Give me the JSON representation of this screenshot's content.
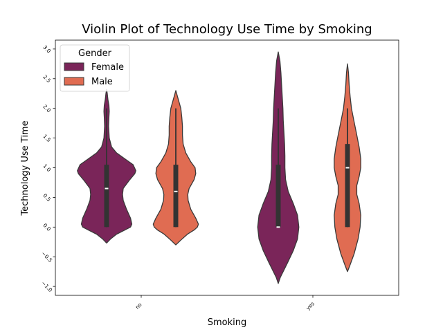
{
  "chart_data": {
    "type": "violin",
    "title": "Violin Plot of Technology Use Time by Smoking",
    "xlabel": "Smoking",
    "ylabel": "Technology Use Time",
    "categories": [
      "no",
      "yes"
    ],
    "yticks": [
      "−1.0",
      "−0.5",
      "0.0",
      "0.5",
      "1.0",
      "1.5",
      "2.0",
      "2.5",
      "3.0"
    ],
    "ylim": [
      -1.15,
      3.15
    ],
    "legend": {
      "title": "Gender",
      "position": "upper-left"
    },
    "grid": false,
    "series": [
      {
        "name": "Female",
        "color": "#7a2559",
        "stats": [
          {
            "category": "no",
            "min": 0.0,
            "q1": 0.0,
            "median": 0.65,
            "q3": 1.05,
            "max": 2.0,
            "profile": [
              [
                -0.27,
                0.0
              ],
              [
                -0.2,
                0.12
              ],
              [
                -0.12,
                0.3
              ],
              [
                -0.05,
                0.55
              ],
              [
                0.0,
                0.72
              ],
              [
                0.05,
                0.76
              ],
              [
                0.15,
                0.72
              ],
              [
                0.3,
                0.6
              ],
              [
                0.45,
                0.5
              ],
              [
                0.55,
                0.48
              ],
              [
                0.65,
                0.5
              ],
              [
                0.8,
                0.7
              ],
              [
                0.9,
                0.85
              ],
              [
                0.95,
                0.88
              ],
              [
                1.05,
                0.8
              ],
              [
                1.15,
                0.55
              ],
              [
                1.25,
                0.3
              ],
              [
                1.35,
                0.15
              ],
              [
                1.5,
                0.08
              ],
              [
                1.7,
                0.06
              ],
              [
                1.85,
                0.07
              ],
              [
                1.95,
                0.08
              ],
              [
                2.05,
                0.07
              ],
              [
                2.15,
                0.04
              ],
              [
                2.25,
                0.02
              ],
              [
                2.32,
                0.0
              ]
            ]
          },
          {
            "category": "yes",
            "min": 0.0,
            "q1": 0.0,
            "median": 0.0,
            "q3": 1.05,
            "max": 2.0,
            "profile": [
              [
                -0.95,
                0.0
              ],
              [
                -0.85,
                0.06
              ],
              [
                -0.6,
                0.28
              ],
              [
                -0.4,
                0.45
              ],
              [
                -0.2,
                0.58
              ],
              [
                0.0,
                0.62
              ],
              [
                0.2,
                0.58
              ],
              [
                0.4,
                0.45
              ],
              [
                0.6,
                0.3
              ],
              [
                0.8,
                0.22
              ],
              [
                1.0,
                0.2
              ],
              [
                1.2,
                0.2
              ],
              [
                1.4,
                0.19
              ],
              [
                1.6,
                0.17
              ],
              [
                1.8,
                0.15
              ],
              [
                2.0,
                0.14
              ],
              [
                2.2,
                0.12
              ],
              [
                2.4,
                0.1
              ],
              [
                2.6,
                0.08
              ],
              [
                2.8,
                0.05
              ],
              [
                2.95,
                0.0
              ]
            ]
          }
        ]
      },
      {
        "name": "Male",
        "color": "#e06c52",
        "stats": [
          {
            "category": "no",
            "min": 0.0,
            "q1": 0.0,
            "median": 0.6,
            "q3": 1.05,
            "max": 2.0,
            "profile": [
              [
                -0.3,
                0.0
              ],
              [
                -0.22,
                0.15
              ],
              [
                -0.12,
                0.35
              ],
              [
                -0.05,
                0.55
              ],
              [
                0.0,
                0.65
              ],
              [
                0.05,
                0.68
              ],
              [
                0.15,
                0.6
              ],
              [
                0.3,
                0.45
              ],
              [
                0.45,
                0.37
              ],
              [
                0.55,
                0.36
              ],
              [
                0.65,
                0.4
              ],
              [
                0.8,
                0.55
              ],
              [
                0.9,
                0.6
              ],
              [
                1.0,
                0.58
              ],
              [
                1.1,
                0.45
              ],
              [
                1.25,
                0.3
              ],
              [
                1.4,
                0.22
              ],
              [
                1.55,
                0.2
              ],
              [
                1.7,
                0.2
              ],
              [
                1.85,
                0.18
              ],
              [
                2.0,
                0.15
              ],
              [
                2.1,
                0.1
              ],
              [
                2.2,
                0.05
              ],
              [
                2.3,
                0.0
              ]
            ]
          },
          {
            "category": "yes",
            "min": 0.0,
            "q1": 0.0,
            "median": 1.0,
            "q3": 1.4,
            "max": 2.0,
            "profile": [
              [
                -0.75,
                0.0
              ],
              [
                -0.65,
                0.07
              ],
              [
                -0.45,
                0.2
              ],
              [
                -0.2,
                0.32
              ],
              [
                0.0,
                0.38
              ],
              [
                0.2,
                0.4
              ],
              [
                0.4,
                0.35
              ],
              [
                0.55,
                0.28
              ],
              [
                0.7,
                0.28
              ],
              [
                0.85,
                0.35
              ],
              [
                1.0,
                0.4
              ],
              [
                1.15,
                0.4
              ],
              [
                1.35,
                0.35
              ],
              [
                1.55,
                0.28
              ],
              [
                1.8,
                0.19
              ],
              [
                2.0,
                0.12
              ],
              [
                2.2,
                0.08
              ],
              [
                2.4,
                0.05
              ],
              [
                2.6,
                0.03
              ],
              [
                2.75,
                0.0
              ]
            ]
          }
        ]
      }
    ]
  }
}
